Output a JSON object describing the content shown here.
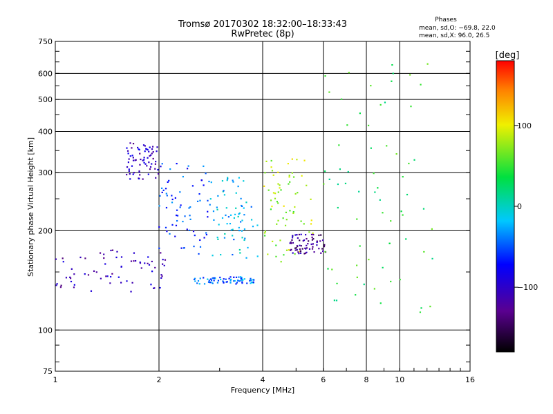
{
  "chart_data": {
    "type": "scatter",
    "title": "Tromsø 20170302 18:32:00–18:33:43",
    "subtitle": "RwPretec (8p)",
    "xlabel": "Frequency [MHz]",
    "ylabel": "Stationary phase Virtual Height [km]",
    "x_scale": "log",
    "y_scale": "log",
    "xlim": [
      1,
      16
    ],
    "ylim": [
      75,
      750
    ],
    "x_ticks": [
      1,
      2,
      4,
      6,
      8,
      10,
      16
    ],
    "x_tick_labels": [
      "1",
      "2",
      "4",
      "6",
      "8",
      "10",
      "16"
    ],
    "x_gridlines": [
      2,
      4,
      6,
      8,
      10
    ],
    "y_ticks": [
      75,
      100,
      200,
      300,
      400,
      500,
      600,
      750
    ],
    "y_tick_labels": [
      "75",
      "100",
      "200",
      "300",
      "400",
      "500",
      "600",
      "750"
    ],
    "y_gridlines": [
      100,
      200,
      300,
      400,
      500,
      600
    ],
    "grid": true,
    "stats": {
      "heading": "Phases",
      "line1": "mean, sd,O: −69.8, 22.0",
      "line2": "mean, sd,X:  96.0, 26.5"
    },
    "colorbar": {
      "label": "[deg]",
      "range": [
        -180,
        180
      ],
      "ticks": [
        100,
        0,
        -100
      ],
      "tick_labels": [
        "100",
        "0",
        "−100"
      ]
    },
    "series": [
      {
        "name": "low-frequency O trace (blue)",
        "x_range": [
          1.0,
          2.1
        ],
        "y_range": [
          130,
          175
        ],
        "phase": -110
      },
      {
        "name": "F-layer cusp (cyan)",
        "x_range": [
          2.0,
          2.8
        ],
        "y_range": [
          170,
          320
        ],
        "phase": -60
      },
      {
        "name": "high trace (blue)",
        "x_range": [
          1.6,
          2.0
        ],
        "y_range": [
          285,
          370
        ],
        "phase": -105
      },
      {
        "name": "mid band (mixed)",
        "x_range": [
          2.8,
          4.0
        ],
        "y_range": [
          165,
          290
        ],
        "phase": -20
      },
      {
        "name": "X trace (yellow/orange)",
        "x_range": [
          4.0,
          5.6
        ],
        "y_range": [
          160,
          330
        ],
        "phase": 80
      },
      {
        "name": "lower streak (cyan)",
        "x_range": [
          2.5,
          3.8
        ],
        "y_range": [
          138,
          145
        ],
        "phase": -40
      },
      {
        "name": "O trace (dark blue)",
        "x_range": [
          4.8,
          6.1
        ],
        "y_range": [
          170,
          195
        ],
        "phase": -125
      },
      {
        "name": "scattered high returns",
        "x_range": [
          6.0,
          12.5
        ],
        "y_range": [
          110,
          650
        ],
        "phase": 40
      }
    ]
  }
}
